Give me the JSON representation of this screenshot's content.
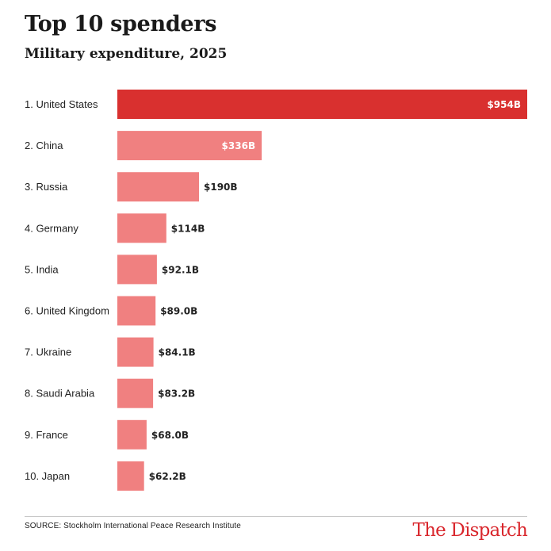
{
  "header": {
    "title": "Top 10 spenders",
    "subtitle": "Military expenditure, 2025"
  },
  "chart_data": {
    "type": "bar",
    "orientation": "horizontal",
    "title": "Top 10 spenders",
    "subtitle": "Military expenditure, 2025",
    "categories": [
      "1. United States",
      "2. China",
      "3. Russia",
      "4. Germany",
      "5. India",
      "6. United Kingdom",
      "7. Ukraine",
      "8. Saudi Arabia",
      "9. France",
      "10. Japan"
    ],
    "values": [
      954,
      336,
      190,
      114,
      92.1,
      89.0,
      84.1,
      83.2,
      68.0,
      62.2
    ],
    "value_labels": [
      "$954B",
      "$336B",
      "$190B",
      "$114B",
      "$92.1B",
      "$89.0B",
      "$84.1B",
      "$83.2B",
      "$68.0B",
      "$62.2B"
    ],
    "unit": "billion USD",
    "xlim": [
      0,
      954
    ],
    "grid": false,
    "legend": "none",
    "highlight_index": 0,
    "colors": {
      "highlight": "#d9302f",
      "bar": "#f08080",
      "label_inside": "#ffffff",
      "label_outside": "#222222"
    }
  },
  "footer": {
    "source": "SOURCE: Stockholm International Peace Research Institute",
    "logo_text": "The Dispatch"
  }
}
